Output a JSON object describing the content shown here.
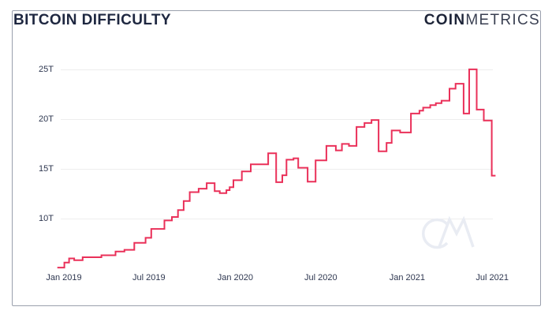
{
  "header": {
    "title": "BITCOIN DIFFICULTY",
    "logo_bold": "COIN",
    "logo_light": "METRICS"
  },
  "watermark": {
    "text": "CM"
  },
  "colors": {
    "line": "#ea3059",
    "grid": "#ededed",
    "axis_text": "#2e3750",
    "title_text": "#1e2740",
    "card_border": "#9aa0ad",
    "watermark": "#e9ecf3",
    "background": "#ffffff"
  },
  "chart_data": {
    "type": "line",
    "step": "after",
    "title": "Bitcoin Difficulty",
    "unit": "T",
    "xlabel": "",
    "ylabel": "",
    "grid": true,
    "legend": "none",
    "ylim": [
      4,
      26
    ],
    "x_range": [
      "2018-12-18",
      "2021-07-08"
    ],
    "y_ticks": [
      {
        "label": "25T",
        "value": 25
      },
      {
        "label": "20T",
        "value": 20
      },
      {
        "label": "15T",
        "value": 15
      },
      {
        "label": "10T",
        "value": 10
      }
    ],
    "x_ticks": [
      {
        "label": "Jan 2019",
        "date": "2019-01-01"
      },
      {
        "label": "Jul 2019",
        "date": "2019-07-01"
      },
      {
        "label": "Jan 2020",
        "date": "2020-01-01"
      },
      {
        "label": "Jul 2020",
        "date": "2020-07-01"
      },
      {
        "label": "Jan 2021",
        "date": "2021-01-01"
      },
      {
        "label": "Jul 2021",
        "date": "2021-07-01"
      }
    ],
    "series": [
      {
        "name": "difficulty",
        "unit": "T",
        "points": [
          [
            "2018-12-18",
            5.11
          ],
          [
            "2019-01-02",
            5.62
          ],
          [
            "2019-01-12",
            6.03
          ],
          [
            "2019-01-23",
            5.85
          ],
          [
            "2019-02-10",
            6.15
          ],
          [
            "2019-03-22",
            6.35
          ],
          [
            "2019-04-21",
            6.73
          ],
          [
            "2019-05-10",
            6.9
          ],
          [
            "2019-05-31",
            7.6
          ],
          [
            "2019-06-24",
            8.1
          ],
          [
            "2019-07-06",
            9.0
          ],
          [
            "2019-08-03",
            9.85
          ],
          [
            "2019-08-19",
            10.2
          ],
          [
            "2019-09-01",
            10.9
          ],
          [
            "2019-09-13",
            11.8
          ],
          [
            "2019-09-26",
            12.7
          ],
          [
            "2019-10-15",
            13.05
          ],
          [
            "2019-11-01",
            13.6
          ],
          [
            "2019-11-18",
            12.8
          ],
          [
            "2019-11-29",
            12.6
          ],
          [
            "2019-12-13",
            12.9
          ],
          [
            "2019-12-20",
            13.2
          ],
          [
            "2019-12-28",
            13.9
          ],
          [
            "2020-01-15",
            14.78
          ],
          [
            "2020-02-03",
            15.5
          ],
          [
            "2020-03-11",
            16.6
          ],
          [
            "2020-03-28",
            13.7
          ],
          [
            "2020-04-10",
            14.4
          ],
          [
            "2020-04-19",
            15.96
          ],
          [
            "2020-05-04",
            16.1
          ],
          [
            "2020-05-14",
            15.15
          ],
          [
            "2020-06-03",
            13.75
          ],
          [
            "2020-06-20",
            15.9
          ],
          [
            "2020-07-13",
            17.35
          ],
          [
            "2020-08-02",
            16.9
          ],
          [
            "2020-08-15",
            17.55
          ],
          [
            "2020-08-30",
            17.35
          ],
          [
            "2020-09-15",
            19.25
          ],
          [
            "2020-10-02",
            19.65
          ],
          [
            "2020-10-17",
            19.95
          ],
          [
            "2020-11-01",
            16.8
          ],
          [
            "2020-11-18",
            17.65
          ],
          [
            "2020-11-29",
            18.9
          ],
          [
            "2020-12-17",
            18.7
          ],
          [
            "2021-01-09",
            20.6
          ],
          [
            "2021-01-27",
            20.9
          ],
          [
            "2021-02-04",
            21.2
          ],
          [
            "2021-02-19",
            21.45
          ],
          [
            "2021-03-03",
            21.65
          ],
          [
            "2021-03-15",
            21.9
          ],
          [
            "2021-04-01",
            23.1
          ],
          [
            "2021-04-14",
            23.6
          ],
          [
            "2021-05-01",
            20.6
          ],
          [
            "2021-05-13",
            25.05
          ],
          [
            "2021-05-29",
            21.0
          ],
          [
            "2021-06-13",
            19.9
          ],
          [
            "2021-06-30",
            14.36
          ]
        ]
      }
    ]
  }
}
